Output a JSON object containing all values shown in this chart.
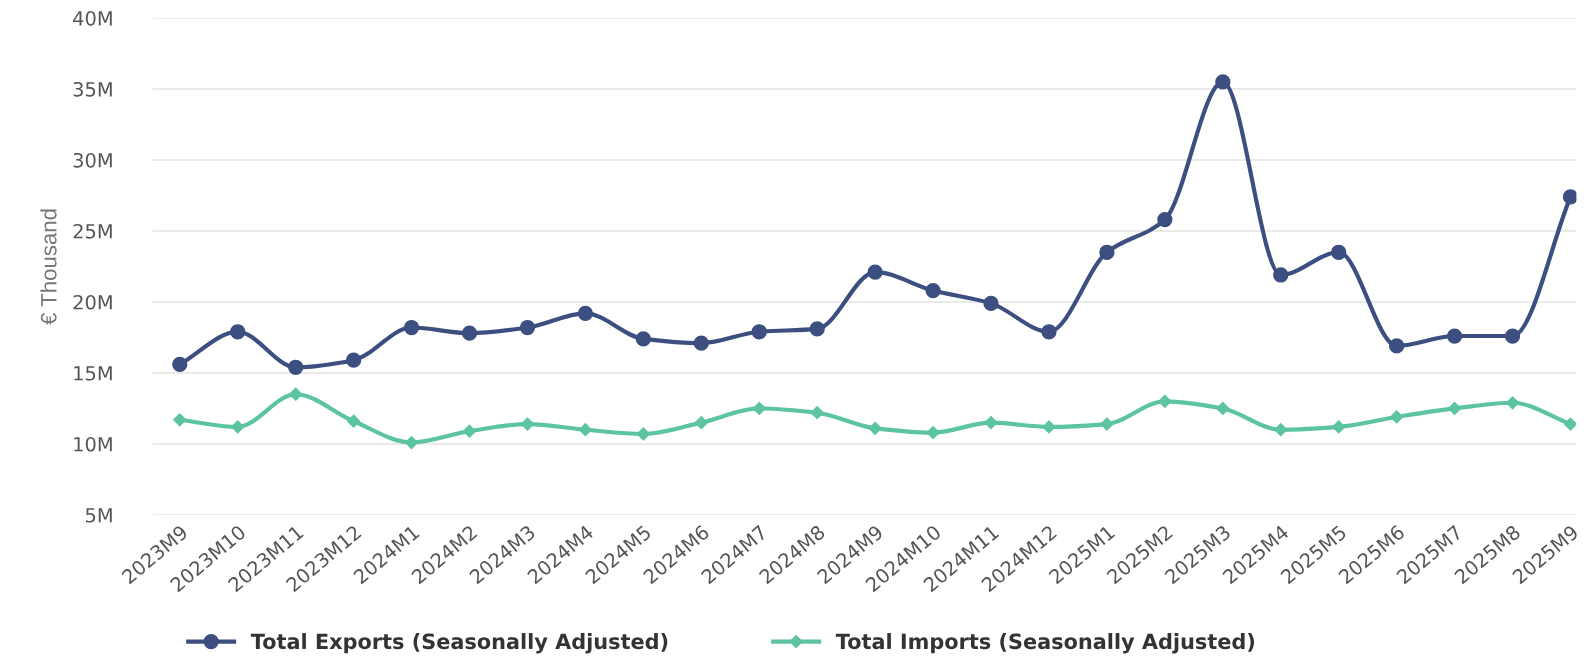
{
  "chart_data": {
    "type": "line",
    "ylabel": "€ Thousand",
    "categories": [
      "2023M9",
      "2023M10",
      "2023M11",
      "2023M12",
      "2024M1",
      "2024M2",
      "2024M3",
      "2024M4",
      "2024M5",
      "2024M6",
      "2024M7",
      "2024M8",
      "2024M9",
      "2024M10",
      "2024M11",
      "2024M12",
      "2025M1",
      "2025M2",
      "2025M3",
      "2025M4",
      "2025M5",
      "2025M6",
      "2025M7",
      "2025M8",
      "2025M9"
    ],
    "series": [
      {
        "name": "Total Exports (Seasonally Adjusted)",
        "color": "#3d4f80",
        "marker": "circle",
        "values": [
          15.6,
          17.9,
          15.4,
          15.9,
          18.2,
          17.8,
          18.2,
          19.2,
          17.4,
          17.1,
          17.9,
          18.1,
          22.1,
          20.8,
          19.9,
          17.9,
          23.5,
          25.8,
          35.5,
          21.9,
          23.5,
          16.9,
          17.6,
          17.6,
          27.4
        ]
      },
      {
        "name": "Total Imports (Seasonally Adjusted)",
        "color": "#5cc4a0",
        "marker": "diamond",
        "values": [
          11.7,
          11.2,
          13.5,
          11.6,
          10.1,
          10.9,
          11.4,
          11.0,
          10.7,
          11.5,
          12.5,
          12.2,
          11.1,
          10.8,
          11.5,
          11.2,
          11.4,
          13.0,
          12.5,
          11.0,
          11.2,
          11.9,
          12.5,
          12.9,
          11.4
        ]
      }
    ],
    "ylim": [
      5,
      40
    ],
    "yticks": [
      {
        "value": 5,
        "label": "5M"
      },
      {
        "value": 10,
        "label": "10M"
      },
      {
        "value": 15,
        "label": "15M"
      },
      {
        "value": 20,
        "label": "20M"
      },
      {
        "value": 25,
        "label": "25M"
      },
      {
        "value": 30,
        "label": "30M"
      },
      {
        "value": 35,
        "label": "35M"
      },
      {
        "value": 40,
        "label": "40M"
      }
    ],
    "grid": "y",
    "legend": "bottom",
    "line_style": "solid"
  }
}
